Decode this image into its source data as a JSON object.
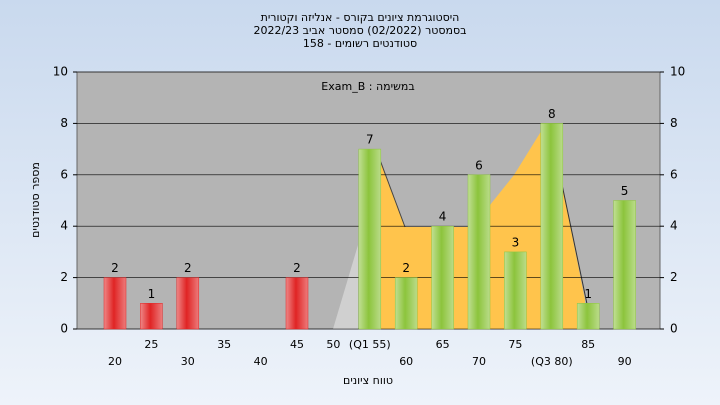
{
  "chart_data": {
    "type": "bar",
    "title": "היסטוגרמת ציונים בקורס - אנליזה וקטורית",
    "subtitle": [
      "בסמסטר  (02/2022)  סמסטר אביב 2022/23",
      "סטודנטים רשומים - 158"
    ],
    "annotation": "Exam_B : במשימה",
    "y_label": "מספר סטודנטים",
    "x_label": "טווח ציונים",
    "categories": [
      "20",
      "25",
      "30",
      "35",
      "40",
      "45",
      "50",
      "(Q1 55)",
      "60",
      "65",
      "70",
      "75",
      "(Q3 80)",
      "85",
      "90"
    ],
    "values": [
      2,
      1,
      2,
      0,
      0,
      2,
      0,
      7,
      2,
      4,
      6,
      3,
      8,
      1,
      5
    ],
    "colors": [
      "#e02424",
      "#e02424",
      "#e02424",
      "#e02424",
      "#e02424",
      "#e02424",
      "#e02424",
      "#8cc43c",
      "#8cc43c",
      "#8cc43c",
      "#8cc43c",
      "#8cc43c",
      "#8cc43c",
      "#8cc43c",
      "#8cc43c"
    ],
    "ylim": [
      0,
      10
    ],
    "yticks": [
      0,
      2,
      4,
      6,
      8,
      10
    ],
    "y2lim": [
      0,
      10
    ],
    "y2ticks": [
      0,
      2,
      4,
      6,
      8,
      10
    ],
    "grid": true
  }
}
